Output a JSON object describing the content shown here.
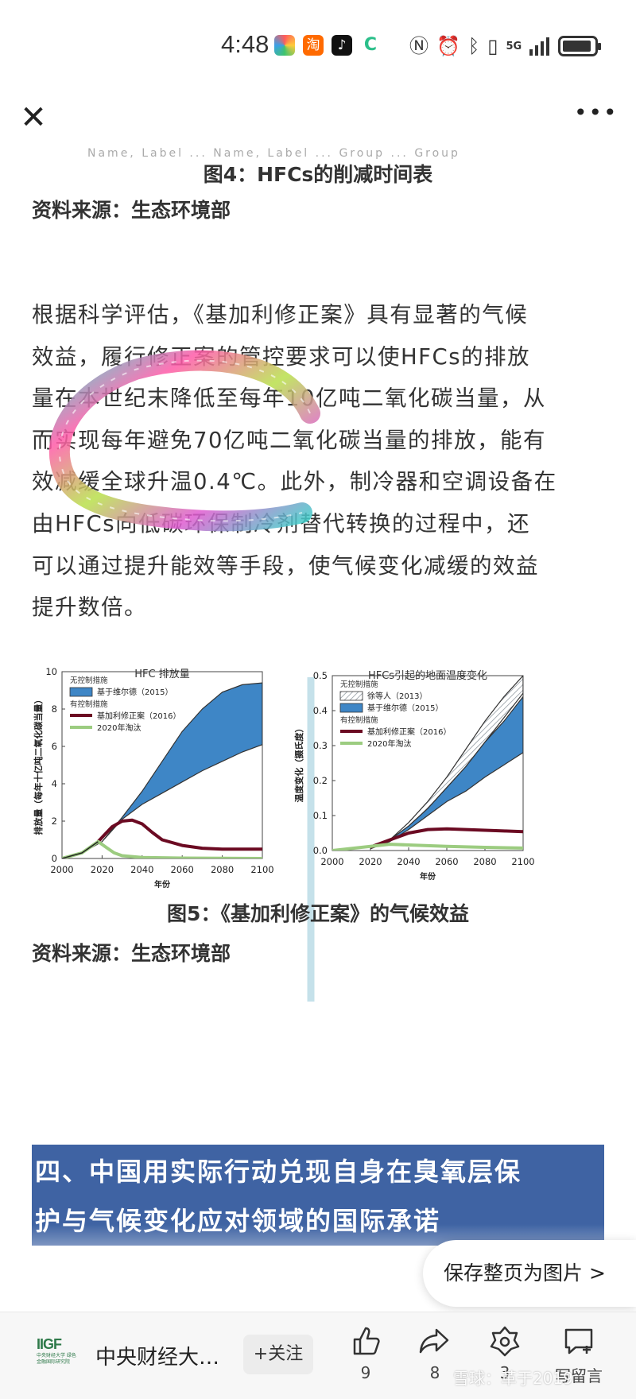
{
  "status_bar": {
    "time": "4:48",
    "network": "5G",
    "app_icons": [
      {
        "name": "colorful-app-icon",
        "color": "#3aa0e8"
      },
      {
        "name": "taobao-icon",
        "color": "#ff6a00",
        "glyph": "淘"
      },
      {
        "name": "tiktok-icon",
        "color": "#111111",
        "glyph": "♪"
      },
      {
        "name": "sync-app-icon",
        "color": "#2bbf8a",
        "glyph": "C"
      }
    ]
  },
  "nav": {
    "close_icon": "close-icon",
    "more_icon": "more-icon",
    "more_glyph": "•••",
    "close_glyph": "✕"
  },
  "article": {
    "cut_text": "Name, Label ... Name, Label ... Group ... Group",
    "fig4_caption": "图4：HFCs的削减时间表",
    "fig4_source": "资料来源：生态环境部",
    "paragraph_lines": [
      "根据科学评估，《基加利修正案》具有显著的气候",
      "效益，履行修正案的管控要求可以使HFCs的排放",
      "量在本世纪末降低至每年10亿吨二氧化碳当量，从",
      "而实现每年避免70亿吨二氧化碳当量的排放，能有",
      "效减缓全球升温0.4℃。此外，制冷器和空调设备在",
      "由HFCs向低碳环保制冷剂替代转换的过程中，还",
      "可以通过提升能效等手段，使气候变化减缓的效益",
      "提升数倍。"
    ],
    "fig5_caption": "图5：《基加利修正案》的气候效益",
    "fig5_source": "资料来源：生态环境部",
    "section_heading_lines": [
      "四、中国用实际行动兑现自身在臭氧层保",
      "护与气候变化应对领域的国际承诺"
    ]
  },
  "chart_data": [
    {
      "type": "area",
      "title": "HFC 排放量",
      "xlabel": "年份",
      "ylabel": "排放量（每年十亿吨二氧化碳当量）",
      "xlim": [
        2000,
        2100
      ],
      "ylim": [
        0,
        10
      ],
      "x_ticks": [
        "2000",
        "2020",
        "2040",
        "2060",
        "2080",
        "2100"
      ],
      "y_ticks": [
        "0",
        "2",
        "4",
        "6",
        "8",
        "10"
      ],
      "legend_headers": [
        "无控制措施",
        "有控制措施"
      ],
      "series": [
        {
          "name": "基于维尔德（2015）",
          "kind": "band",
          "color": "#3e86c6",
          "x": [
            2000,
            2010,
            2020,
            2030,
            2040,
            2050,
            2060,
            2070,
            2080,
            2090,
            2100
          ],
          "lower": [
            0,
            0.3,
            0.9,
            2.1,
            2.9,
            3.5,
            4.1,
            4.7,
            5.2,
            5.7,
            6.1
          ],
          "upper": [
            0,
            0.3,
            0.9,
            2.2,
            3.6,
            5.2,
            6.8,
            8.0,
            8.9,
            9.3,
            9.4
          ]
        },
        {
          "name": "基加利修正案（2016）",
          "kind": "line",
          "color": "#6b0a22",
          "x": [
            2018,
            2025,
            2030,
            2035,
            2040,
            2045,
            2050,
            2060,
            2070,
            2080,
            2090,
            2100
          ],
          "values": [
            0.9,
            1.7,
            2.0,
            2.05,
            1.85,
            1.4,
            1.0,
            0.7,
            0.55,
            0.5,
            0.5,
            0.5
          ]
        },
        {
          "name": "2020年淘汰",
          "kind": "line",
          "color": "#9ccc80",
          "x": [
            2000,
            2010,
            2018,
            2022,
            2026,
            2030,
            2040,
            2060,
            2080,
            2100
          ],
          "values": [
            0,
            0.3,
            0.9,
            0.6,
            0.3,
            0.15,
            0.05,
            0.02,
            0.01,
            0
          ]
        }
      ]
    },
    {
      "type": "area",
      "title": "HFCs引起的地面温度变化",
      "xlabel": "年份",
      "ylabel": "温度变化（摄氏度）",
      "xlim": [
        2000,
        2100
      ],
      "ylim": [
        0,
        0.5
      ],
      "x_ticks": [
        "2000",
        "2020",
        "2040",
        "2060",
        "2080",
        "2100"
      ],
      "y_ticks": [
        "0.0",
        "0.1",
        "0.2",
        "0.3",
        "0.4",
        "0.5"
      ],
      "legend_headers": [
        "无控制措施",
        "有控制措施"
      ],
      "series": [
        {
          "name": "徐等人（2013）",
          "kind": "hatched-band",
          "color": "#9aa3ad",
          "x": [
            2030,
            2040,
            2050,
            2060,
            2070,
            2080,
            2090,
            2100
          ],
          "lower": [
            0.03,
            0.07,
            0.12,
            0.18,
            0.24,
            0.31,
            0.38,
            0.45
          ],
          "upper": [
            0.03,
            0.08,
            0.14,
            0.21,
            0.29,
            0.37,
            0.44,
            0.5
          ]
        },
        {
          "name": "基于维尔德（2015）",
          "kind": "band",
          "color": "#3e86c6",
          "x": [
            2020,
            2030,
            2040,
            2050,
            2060,
            2070,
            2080,
            2090,
            2100
          ],
          "lower": [
            0.005,
            0.025,
            0.06,
            0.1,
            0.14,
            0.17,
            0.21,
            0.245,
            0.28
          ],
          "upper": [
            0.005,
            0.03,
            0.07,
            0.12,
            0.18,
            0.24,
            0.31,
            0.37,
            0.44
          ]
        },
        {
          "name": "基加利修正案（2016）",
          "kind": "line",
          "color": "#6b0a22",
          "x": [
            2020,
            2030,
            2040,
            2050,
            2060,
            2070,
            2080,
            2090,
            2100
          ],
          "values": [
            0.01,
            0.03,
            0.05,
            0.06,
            0.062,
            0.06,
            0.058,
            0.056,
            0.054
          ]
        },
        {
          "name": "2020年淘汰",
          "kind": "line",
          "color": "#9ccc80",
          "x": [
            2000,
            2020,
            2030,
            2040,
            2060,
            2080,
            2100
          ],
          "values": [
            0,
            0.012,
            0.018,
            0.016,
            0.012,
            0.009,
            0.007
          ]
        }
      ]
    }
  ],
  "save_page": {
    "label": "保存整页为图片 >"
  },
  "bottom_bar": {
    "logo_main": "IIGF",
    "logo_sub": "中央财经大学 绿色金融国际研究院",
    "account": "中央财经大…",
    "follow_label": "+关注",
    "like_count": "9",
    "share_count": "8",
    "gift_count": "3",
    "comment_label": "写留言"
  },
  "watermark": "雪球：革于2019"
}
